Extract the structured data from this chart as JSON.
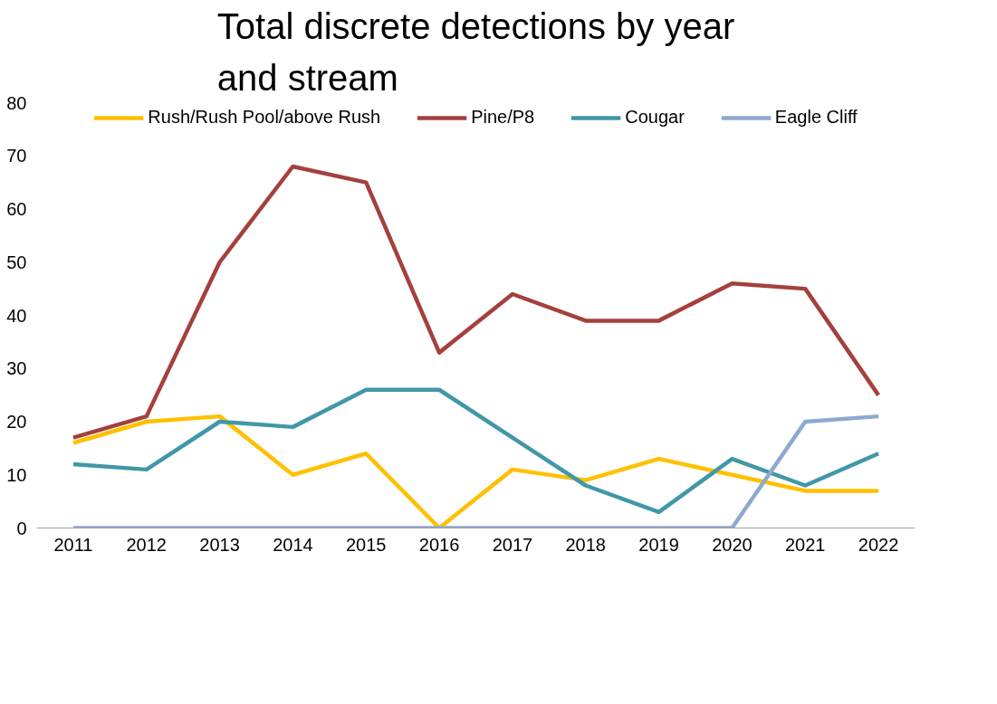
{
  "chart_data": {
    "type": "line",
    "title": "Total discrete detections by year and stream",
    "categories": [
      "2011",
      "2012",
      "2013",
      "2014",
      "2015",
      "2016",
      "2017",
      "2018",
      "2019",
      "2020",
      "2021",
      "2022"
    ],
    "series": [
      {
        "name": "Rush/Rush Pool/above Rush",
        "color": "#ffc000",
        "values": [
          16,
          20,
          21,
          10,
          14,
          0,
          11,
          9,
          13,
          10,
          7,
          7
        ]
      },
      {
        "name": "Pine/P8",
        "color": "#a5403c",
        "values": [
          17,
          21,
          50,
          68,
          65,
          33,
          44,
          39,
          39,
          46,
          45,
          25
        ]
      },
      {
        "name": "Cougar",
        "color": "#4197a8",
        "values": [
          12,
          11,
          20,
          19,
          26,
          26,
          17,
          8,
          3,
          13,
          8,
          14
        ]
      },
      {
        "name": "Eagle Cliff",
        "color": "#8ea9d0",
        "values": [
          0,
          0,
          0,
          0,
          0,
          0,
          0,
          0,
          0,
          0,
          20,
          21
        ]
      }
    ],
    "ylim": [
      0,
      80
    ],
    "yticks": [
      0,
      10,
      20,
      30,
      40,
      50,
      60,
      70,
      80
    ],
    "grid": false,
    "legend": "top",
    "marker": "none",
    "line_style": "solid"
  }
}
